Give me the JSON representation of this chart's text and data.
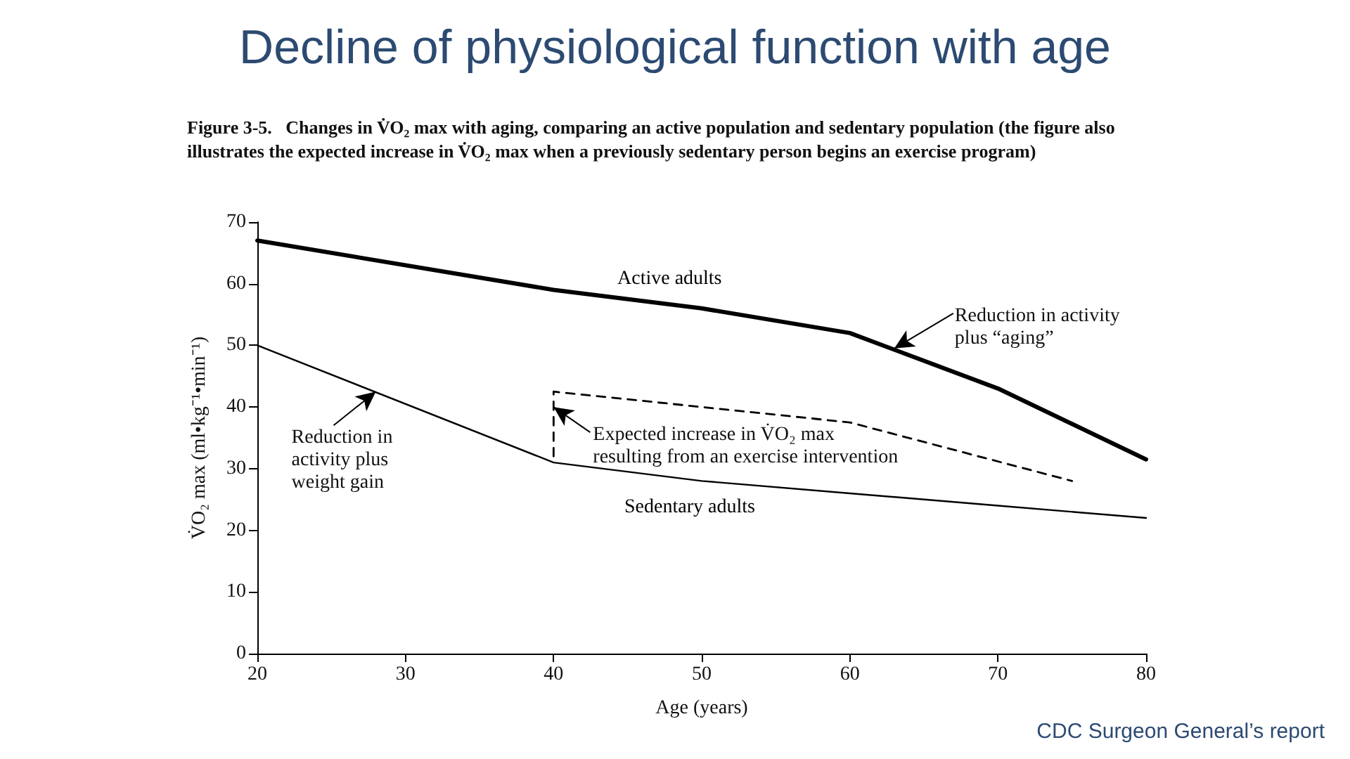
{
  "chart_data": {
    "type": "line",
    "title": "Decline of physiological function with age",
    "subtitle": "Figure 3-5.   Changes in V̇O₂ max with aging, comparing an active population and sedentary population (the figure also illustrates the expected increase in V̇O₂ max when a previously sedentary person begins an exercise program)",
    "xlabel": "Age (years)",
    "ylabel": "V̇O₂ max (ml•kg⁻¹•min⁻¹)",
    "x": [
      20,
      40,
      50,
      60,
      70,
      80
    ],
    "series": [
      {
        "name": "Active adults",
        "color": "#000000",
        "values": [
          67,
          59,
          56,
          52,
          43,
          31.5
        ]
      },
      {
        "name": "Sedentary adults",
        "color": "#000000",
        "values": [
          50,
          31,
          28,
          26,
          24,
          22
        ]
      },
      {
        "color": "#000000",
        "x": [
          40,
          40,
          60,
          75
        ],
        "values": [
          32,
          42.5,
          37.5,
          28
        ],
        "line_style": "dashed"
      }
    ],
    "xlim": [
      20,
      80
    ],
    "xticks": [
      20,
      30,
      40,
      50,
      60,
      70,
      80
    ],
    "ylim": [
      0,
      70
    ],
    "yticks": [
      0,
      10,
      20,
      30,
      40,
      50,
      60,
      70
    ],
    "grid": false,
    "legend": false,
    "marker": "none",
    "line_style": "solid",
    "annotations": [
      {
        "text": "Reduction in activity plus “aging”",
        "x": 63,
        "y": 49.5
      },
      {
        "text": "Reduction in activity plus weight gain",
        "x": 28,
        "y": 42.5
      },
      {
        "text": "Expected increase in V̇O₂ max resulting from an exercise intervention",
        "x": 40,
        "y": 40
      },
      "CDC Surgeon General’s report"
    ]
  }
}
